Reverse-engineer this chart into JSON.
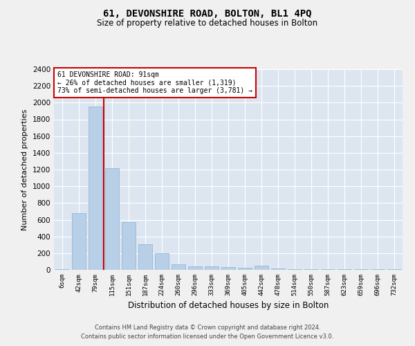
{
  "title": "61, DEVONSHIRE ROAD, BOLTON, BL1 4PQ",
  "subtitle": "Size of property relative to detached houses in Bolton",
  "xlabel": "Distribution of detached houses by size in Bolton",
  "ylabel": "Number of detached properties",
  "bar_categories": [
    "6sqm",
    "42sqm",
    "79sqm",
    "115sqm",
    "151sqm",
    "187sqm",
    "224sqm",
    "260sqm",
    "296sqm",
    "333sqm",
    "369sqm",
    "405sqm",
    "442sqm",
    "478sqm",
    "514sqm",
    "550sqm",
    "587sqm",
    "623sqm",
    "659sqm",
    "696sqm",
    "732sqm"
  ],
  "bar_values": [
    10,
    680,
    1950,
    1220,
    570,
    305,
    200,
    70,
    45,
    45,
    30,
    25,
    50,
    15,
    10,
    10,
    5,
    5,
    5,
    10,
    10
  ],
  "bar_color": "#b8cfe8",
  "bar_edge_color": "#8aafd4",
  "background_color": "#dde6f0",
  "grid_color": "#ffffff",
  "vline_x_index": 2.5,
  "vline_color": "#cc0000",
  "annotation_text": "61 DEVONSHIRE ROAD: 91sqm\n← 26% of detached houses are smaller (1,319)\n73% of semi-detached houses are larger (3,781) →",
  "annotation_box_color": "#cc0000",
  "ylim": [
    0,
    2400
  ],
  "yticks": [
    0,
    200,
    400,
    600,
    800,
    1000,
    1200,
    1400,
    1600,
    1800,
    2000,
    2200,
    2400
  ],
  "footer_line1": "Contains HM Land Registry data © Crown copyright and database right 2024.",
  "footer_line2": "Contains public sector information licensed under the Open Government Licence v3.0.",
  "fig_facecolor": "#f0f0f0"
}
